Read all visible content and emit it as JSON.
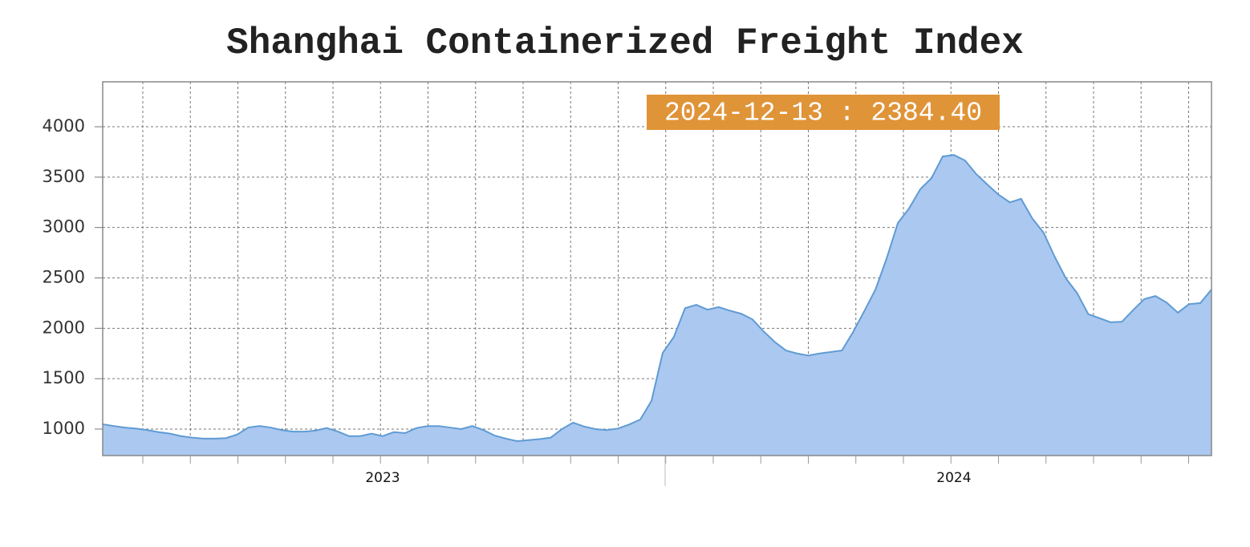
{
  "chart_data": {
    "type": "area",
    "title": "Shanghai Containerized Freight Index",
    "annotation": "2024-12-13 : 2384.40",
    "categories": [
      null,
      null,
      null,
      null,
      null,
      null,
      null,
      null,
      null,
      null,
      null,
      null,
      null,
      null,
      null,
      null,
      null,
      null,
      null,
      null,
      null,
      null,
      null,
      null,
      null,
      "2023",
      null,
      null,
      null,
      null,
      null,
      null,
      null,
      null,
      null,
      null,
      null,
      null,
      null,
      null,
      null,
      null,
      null,
      null,
      null,
      null,
      null,
      null,
      null,
      null,
      null,
      null,
      null,
      null,
      null,
      null,
      null,
      null,
      null,
      null,
      null,
      null,
      null,
      null,
      null,
      null,
      null,
      null,
      null,
      null,
      null,
      null,
      null,
      null,
      null,
      null,
      "2024",
      null,
      null,
      null,
      null,
      null,
      null,
      null,
      null,
      null,
      null,
      null,
      null,
      null,
      null,
      null,
      null,
      null,
      null,
      null,
      null,
      null,
      null,
      null
    ],
    "values": [
      1048,
      1030,
      1015,
      1005,
      990,
      970,
      955,
      930,
      915,
      905,
      905,
      910,
      945,
      1015,
      1030,
      1015,
      990,
      975,
      975,
      985,
      1010,
      975,
      930,
      930,
      955,
      930,
      970,
      960,
      1010,
      1030,
      1030,
      1015,
      1000,
      1030,
      990,
      935,
      905,
      880,
      890,
      900,
      915,
      1000,
      1064,
      1025,
      1000,
      990,
      1005,
      1045,
      1095,
      1280,
      1755,
      1915,
      2200,
      2233,
      2185,
      2210,
      2175,
      2145,
      2090,
      1970,
      1865,
      1780,
      1750,
      1730,
      1750,
      1765,
      1780,
      1963,
      2170,
      2385,
      2695,
      3045,
      3190,
      3380,
      3490,
      3705,
      3720,
      3665,
      3530,
      3425,
      3325,
      3250,
      3285,
      3090,
      2950,
      2710,
      2495,
      2350,
      2140,
      2100,
      2060,
      2065,
      2180,
      2290,
      2320,
      2255,
      2155,
      2240,
      2250,
      2384.4
    ],
    "color": "#abc8f0",
    "line_color": "#5f9bd3",
    "ylim": [
      737,
      4446
    ],
    "yticks": [
      1000,
      1500,
      2000,
      2500,
      3000,
      3500,
      4000
    ],
    "grid": true
  }
}
